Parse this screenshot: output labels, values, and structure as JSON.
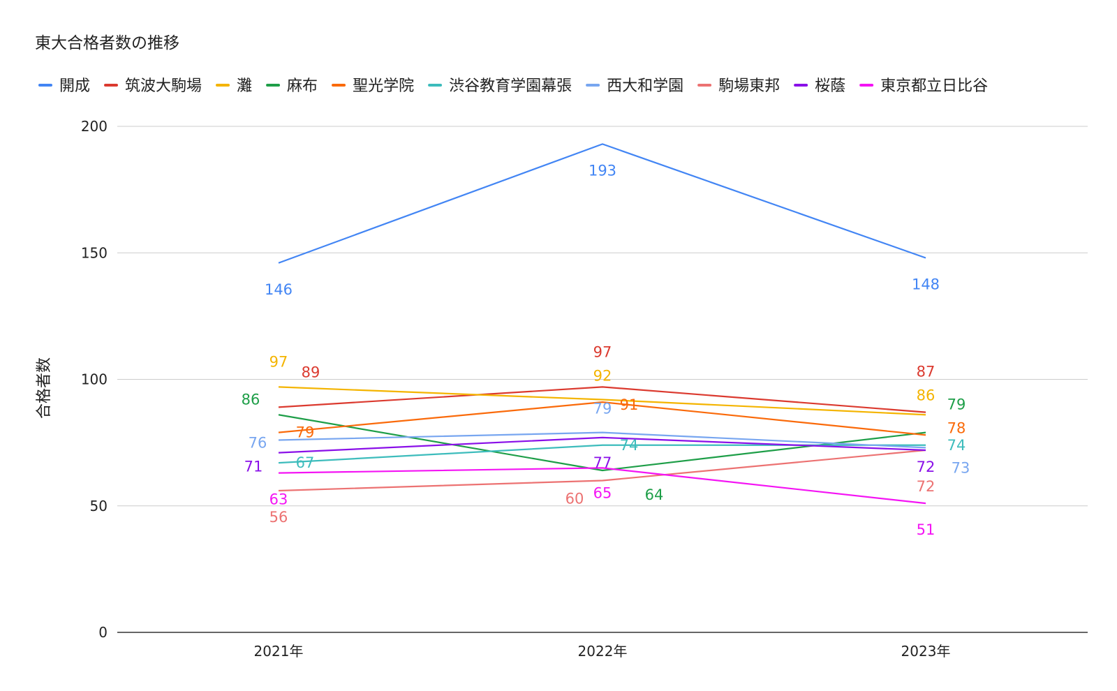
{
  "chart_data": {
    "type": "line",
    "title": "東大合格者数の推移",
    "xlabel": "",
    "ylabel": "合格者数",
    "categories": [
      "2021年",
      "2022年",
      "2023年"
    ],
    "ylim": [
      0,
      200
    ],
    "yticks": [
      0,
      50,
      100,
      150,
      200
    ],
    "grid": true,
    "legend_position": "top",
    "series": [
      {
        "name": "開成",
        "color": "#4285f4",
        "values": [
          146,
          193,
          148
        ]
      },
      {
        "name": "筑波大駒場",
        "color": "#db3a2f",
        "values": [
          89,
          97,
          87
        ]
      },
      {
        "name": "灘",
        "color": "#f4b400",
        "values": [
          97,
          92,
          86
        ]
      },
      {
        "name": "麻布",
        "color": "#1e9e48",
        "values": [
          86,
          64,
          79
        ]
      },
      {
        "name": "聖光学院",
        "color": "#fa6a0a",
        "values": [
          79,
          91,
          78
        ]
      },
      {
        "name": "渋谷教育学園幕張",
        "color": "#3dbcbc",
        "values": [
          67,
          74,
          74
        ]
      },
      {
        "name": "西大和学園",
        "color": "#78a6f0",
        "values": [
          76,
          79,
          73
        ]
      },
      {
        "name": "駒場東邦",
        "color": "#ec7272",
        "values": [
          56,
          60,
          72
        ]
      },
      {
        "name": "桜蔭",
        "color": "#8a10e8",
        "values": [
          71,
          77,
          72
        ]
      },
      {
        "name": "東京都立日比谷",
        "color": "#f414f4",
        "values": [
          63,
          65,
          51
        ]
      }
    ]
  }
}
